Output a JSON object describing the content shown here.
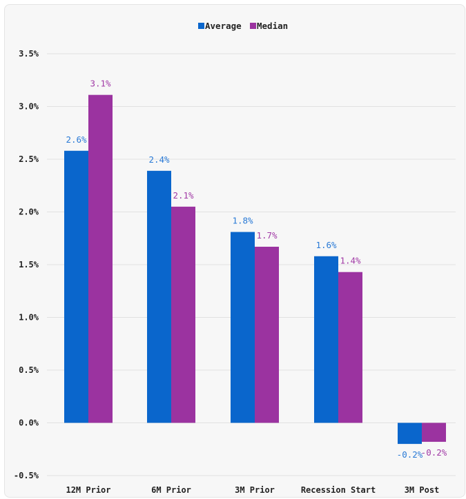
{
  "chart_data": {
    "type": "bar",
    "categories": [
      "12M Prior",
      "6M Prior",
      "3M Prior",
      "Recession Start",
      "3M Post"
    ],
    "series": [
      {
        "name": "Average",
        "color": "#0a66cc",
        "values": [
          2.58,
          2.39,
          1.81,
          1.58,
          -0.2
        ],
        "labels": [
          "2.6%",
          "2.4%",
          "1.8%",
          "1.6%",
          "-0.2%"
        ]
      },
      {
        "name": "Median",
        "color": "#9b33a0",
        "values": [
          3.11,
          2.05,
          1.67,
          1.43,
          -0.18
        ],
        "labels": [
          "3.1%",
          "2.1%",
          "1.7%",
          "1.4%",
          "-0.2%"
        ]
      }
    ],
    "y_ticks": [
      {
        "value": 3.5,
        "label": "3.5%"
      },
      {
        "value": 3.0,
        "label": "3.0%"
      },
      {
        "value": 2.5,
        "label": "2.5%"
      },
      {
        "value": 2.0,
        "label": "2.0%"
      },
      {
        "value": 1.5,
        "label": "1.5%"
      },
      {
        "value": 1.0,
        "label": "1.0%"
      },
      {
        "value": 0.5,
        "label": "0.5%"
      },
      {
        "value": 0.0,
        "label": "0.0%"
      },
      {
        "value": -0.5,
        "label": "-0.5%"
      }
    ],
    "ylim": [
      -0.5,
      3.5
    ],
    "grid": true,
    "legend_position": "top-center",
    "title": "",
    "xlabel": "",
    "ylabel": ""
  }
}
